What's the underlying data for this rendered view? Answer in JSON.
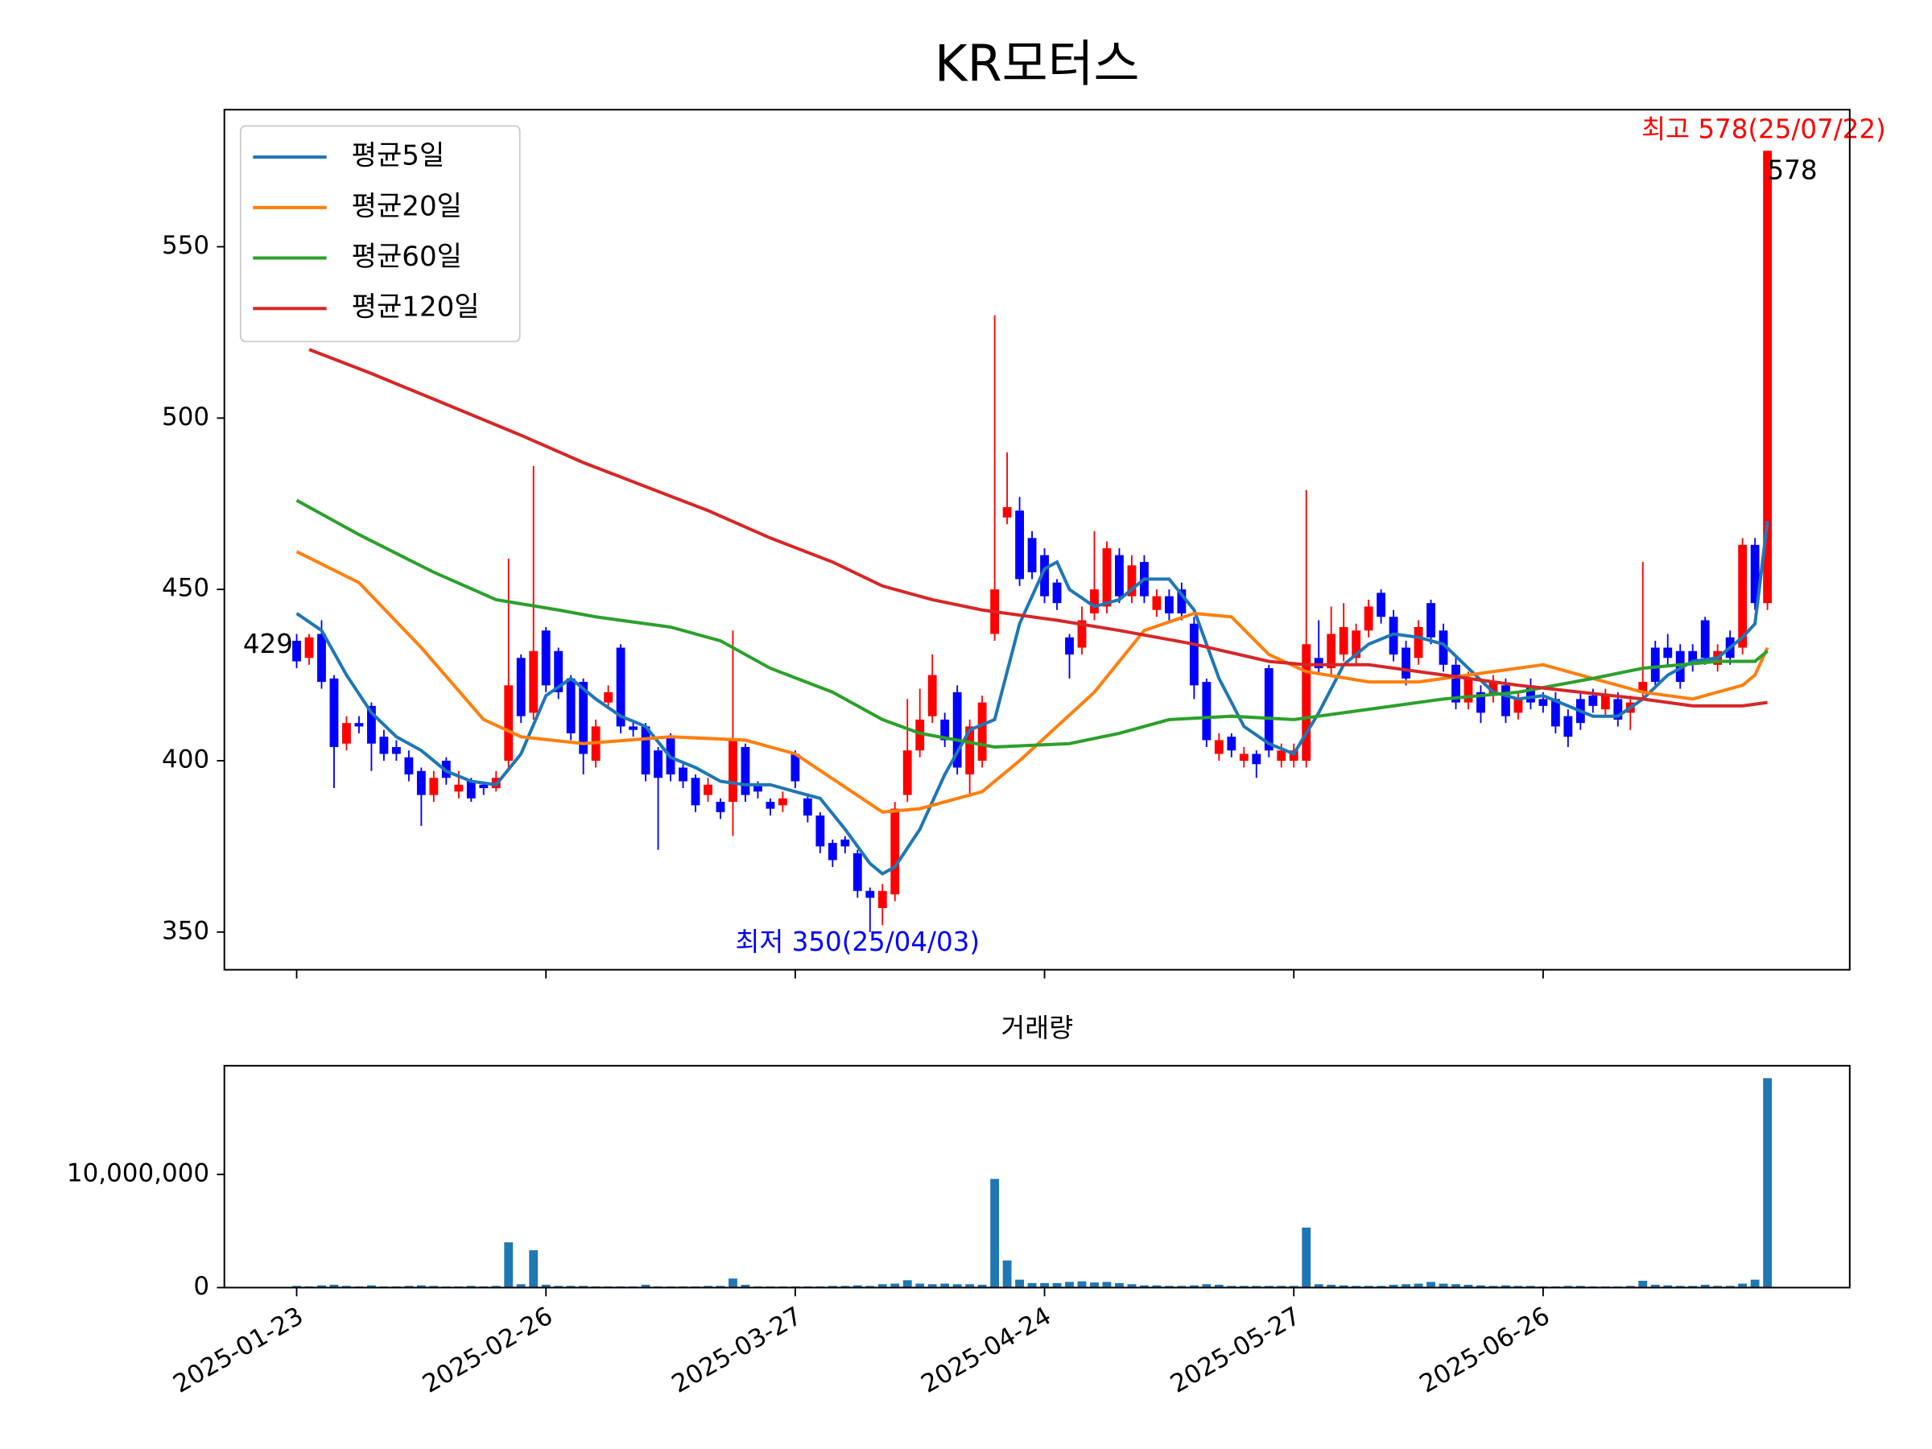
{
  "chart_data": [
    {
      "type": "candlestick",
      "title": "KR모터스",
      "x": [
        0,
        1,
        2,
        3,
        4,
        5,
        6,
        7,
        8,
        9,
        10,
        11,
        12,
        13,
        14,
        15,
        16,
        17,
        18,
        19,
        20,
        21,
        22,
        23,
        24,
        25,
        26,
        27,
        28,
        29,
        30,
        31,
        32,
        33,
        34,
        35,
        36,
        37,
        38,
        39,
        40,
        41,
        42,
        43,
        44,
        45,
        46,
        47,
        48,
        49,
        50,
        51,
        52,
        53,
        54,
        55,
        56,
        57,
        58,
        59,
        60,
        61,
        62,
        63,
        64,
        65,
        66,
        67,
        68,
        69,
        70,
        71,
        72,
        73,
        74,
        75,
        76,
        77,
        78,
        79,
        80,
        81,
        82,
        83,
        84,
        85,
        86,
        87,
        88,
        89,
        90,
        91,
        92,
        93,
        94,
        95,
        96,
        97,
        98,
        99,
        100,
        101,
        102,
        103,
        104,
        105,
        106,
        107,
        108,
        109,
        110,
        111,
        112,
        113,
        114,
        115,
        116,
        117,
        118
      ],
      "candles": [
        [
          435,
          437,
          427,
          429
        ],
        [
          430,
          437,
          428,
          436
        ],
        [
          437,
          441,
          421,
          423
        ],
        [
          424,
          425,
          392,
          404
        ],
        [
          405,
          413,
          403,
          411
        ],
        [
          411,
          413,
          408,
          410
        ],
        [
          416,
          417,
          397,
          405
        ],
        [
          407,
          409,
          400,
          402
        ],
        [
          404,
          406,
          400,
          402
        ],
        [
          401,
          403,
          394,
          396
        ],
        [
          397,
          398,
          381,
          390
        ],
        [
          390,
          397,
          388,
          395
        ],
        [
          400,
          401,
          393,
          395
        ],
        [
          391,
          397,
          389,
          393
        ],
        [
          394,
          395,
          388,
          389
        ],
        [
          393,
          394,
          390,
          392
        ],
        [
          392,
          397,
          391,
          395
        ],
        [
          400,
          459,
          398,
          422
        ],
        [
          430,
          431,
          411,
          413
        ],
        [
          414,
          486,
          412,
          432
        ],
        [
          438,
          439,
          420,
          422
        ],
        [
          432,
          433,
          418,
          420
        ],
        [
          424,
          425,
          406,
          408
        ],
        [
          423,
          424,
          396,
          402
        ],
        [
          400,
          412,
          398,
          410
        ],
        [
          417,
          422,
          415,
          420
        ],
        [
          433,
          434,
          408,
          410
        ],
        [
          410,
          412,
          407,
          409
        ],
        [
          410,
          411,
          394,
          396
        ],
        [
          403,
          404,
          374,
          395
        ],
        [
          407,
          408,
          394,
          396
        ],
        [
          398,
          399,
          392,
          394
        ],
        [
          395,
          396,
          385,
          387
        ],
        [
          390,
          395,
          388,
          393
        ],
        [
          388,
          389,
          383,
          385
        ],
        [
          388,
          438,
          378,
          406
        ],
        [
          404,
          405,
          388,
          390
        ],
        [
          393,
          394,
          389,
          391
        ],
        [
          388,
          389,
          384,
          386
        ],
        [
          387,
          391,
          385,
          389
        ],
        [
          402,
          403,
          392,
          394
        ],
        [
          389,
          390,
          382,
          384
        ],
        [
          384,
          385,
          373,
          375
        ],
        [
          376,
          377,
          369,
          371
        ],
        [
          377,
          378,
          373,
          375
        ],
        [
          373,
          374,
          360,
          362
        ],
        [
          362,
          363,
          350,
          360
        ],
        [
          357,
          364,
          352,
          362
        ],
        [
          361,
          388,
          359,
          386
        ],
        [
          390,
          418,
          388,
          403
        ],
        [
          403,
          421,
          401,
          412
        ],
        [
          413,
          431,
          411,
          425
        ],
        [
          412,
          414,
          404,
          406
        ],
        [
          420,
          422,
          396,
          398
        ],
        [
          396,
          412,
          390,
          410
        ],
        [
          400,
          419,
          398,
          417
        ],
        [
          437,
          530,
          435,
          450
        ],
        [
          471,
          490,
          469,
          474
        ],
        [
          473,
          477,
          451,
          453
        ],
        [
          465,
          467,
          453,
          455
        ],
        [
          460,
          462,
          446,
          448
        ],
        [
          452,
          453,
          444,
          446
        ],
        [
          436,
          437,
          424,
          431
        ],
        [
          433,
          445,
          431,
          441
        ],
        [
          443,
          467,
          441,
          450
        ],
        [
          445,
          464,
          443,
          462
        ],
        [
          460,
          462,
          446,
          448
        ],
        [
          448,
          460,
          446,
          457
        ],
        [
          458,
          460,
          446,
          448
        ],
        [
          444,
          450,
          442,
          448
        ],
        [
          448,
          450,
          441,
          443
        ],
        [
          450,
          452,
          441,
          443
        ],
        [
          440,
          442,
          418,
          422
        ],
        [
          423,
          424,
          404,
          406
        ],
        [
          402,
          408,
          400,
          406
        ],
        [
          407,
          408,
          401,
          403
        ],
        [
          400,
          404,
          398,
          402
        ],
        [
          402,
          403,
          395,
          399
        ],
        [
          427,
          428,
          401,
          403
        ],
        [
          400,
          405,
          398,
          403
        ],
        [
          400,
          405,
          398,
          403
        ],
        [
          400,
          479,
          398,
          434
        ],
        [
          430,
          441,
          425,
          427
        ],
        [
          427,
          445,
          425,
          437
        ],
        [
          431,
          446,
          429,
          439
        ],
        [
          430,
          440,
          428,
          438
        ],
        [
          438,
          447,
          436,
          445
        ],
        [
          449,
          450,
          440,
          442
        ],
        [
          442,
          444,
          429,
          431
        ],
        [
          433,
          435,
          422,
          424
        ],
        [
          430,
          441,
          428,
          439
        ],
        [
          446,
          447,
          434,
          436
        ],
        [
          438,
          440,
          426,
          428
        ],
        [
          428,
          430,
          415,
          417
        ],
        [
          417,
          426,
          415,
          424
        ],
        [
          420,
          422,
          411,
          414
        ],
        [
          419,
          425,
          417,
          423
        ],
        [
          422,
          424,
          411,
          413
        ],
        [
          414,
          420,
          412,
          418
        ],
        [
          422,
          424,
          415,
          417
        ],
        [
          418,
          420,
          414,
          416
        ],
        [
          418,
          420,
          408,
          410
        ],
        [
          413,
          415,
          404,
          407
        ],
        [
          418,
          420,
          409,
          411
        ],
        [
          419,
          421,
          414,
          416
        ],
        [
          415,
          421,
          413,
          419
        ],
        [
          418,
          420,
          410,
          412
        ],
        [
          414,
          419,
          409,
          417
        ],
        [
          420,
          458,
          418,
          423
        ],
        [
          433,
          435,
          421,
          423
        ],
        [
          433,
          437,
          428,
          430
        ],
        [
          432,
          434,
          421,
          423
        ],
        [
          432,
          434,
          426,
          428
        ],
        [
          441,
          442,
          428,
          430
        ],
        [
          428,
          434,
          426,
          432
        ],
        [
          436,
          438,
          428,
          430
        ],
        [
          433,
          465,
          431,
          463
        ],
        [
          463,
          465,
          444,
          446
        ],
        [
          446,
          578,
          444,
          578
        ]
      ],
      "up_color": "#ff0000",
      "down_color": "#0000ff",
      "series": [
        {
          "name": "평균5일",
          "color": "#1f77b4",
          "x": [
            0,
            2,
            4,
            6,
            8,
            10,
            12,
            14,
            16,
            18,
            20,
            22,
            24,
            26,
            28,
            30,
            32,
            34,
            36,
            38,
            40,
            42,
            44,
            46,
            47,
            48,
            50,
            52,
            54,
            56,
            58,
            60,
            61,
            62,
            64,
            66,
            68,
            70,
            72,
            74,
            76,
            78,
            80,
            82,
            84,
            86,
            88,
            90,
            92,
            94,
            96,
            98,
            100,
            102,
            104,
            106,
            108,
            110,
            112,
            114,
            116,
            117,
            118
          ],
          "values": [
            443,
            438,
            425,
            414,
            407,
            403,
            397,
            394,
            393,
            402,
            419,
            424,
            418,
            413,
            410,
            401,
            398,
            394,
            393,
            393,
            391,
            389,
            380,
            370,
            367,
            369,
            380,
            396,
            409,
            412,
            440,
            456,
            458,
            450,
            445,
            447,
            453,
            453,
            444,
            424,
            410,
            405,
            402,
            414,
            428,
            434,
            437,
            436,
            434,
            427,
            420,
            418,
            419,
            416,
            413,
            413,
            418,
            425,
            429,
            430,
            436,
            440,
            470
          ]
        },
        {
          "name": "평균20일",
          "color": "#ff7f0e",
          "x": [
            0,
            5,
            10,
            15,
            18,
            23,
            30,
            36,
            40,
            47,
            50,
            55,
            58,
            64,
            68,
            72,
            75,
            78,
            81,
            86,
            90,
            96,
            100,
            104,
            108,
            112,
            116,
            117,
            118
          ],
          "values": [
            461,
            452,
            433,
            412,
            407,
            405,
            407,
            406,
            402,
            385,
            386,
            391,
            400,
            420,
            438,
            443,
            442,
            431,
            426,
            423,
            423,
            426,
            428,
            424,
            420,
            418,
            422,
            425,
            433
          ]
        },
        {
          "name": "평균60일",
          "color": "#2ca02c",
          "x": [
            0,
            5,
            11,
            16,
            21,
            24,
            30,
            34,
            38,
            43,
            47,
            50,
            56,
            62,
            66,
            70,
            75,
            80,
            84,
            88,
            92,
            98,
            104,
            108,
            114,
            117,
            118
          ],
          "values": [
            476,
            466,
            455,
            447,
            444,
            442,
            439,
            435,
            427,
            420,
            412,
            408,
            404,
            405,
            408,
            412,
            413,
            412,
            414,
            416,
            418,
            420,
            424,
            427,
            429,
            429,
            432
          ]
        },
        {
          "name": "평균120일",
          "color": "#d62728",
          "x": [
            1,
            6,
            12,
            18,
            23,
            28,
            33,
            38,
            43,
            47,
            51,
            55,
            61,
            66,
            72,
            78,
            81,
            86,
            90,
            94,
            98,
            103,
            108,
            112,
            116,
            118
          ],
          "values": [
            520,
            513,
            504,
            495,
            487,
            480,
            473,
            465,
            458,
            451,
            447,
            444,
            441,
            438,
            434,
            429,
            428,
            428,
            426,
            424,
            422,
            420,
            418,
            416,
            416,
            417
          ]
        }
      ],
      "legend": "upper left",
      "ylim": [
        339,
        590
      ],
      "yticks": [
        350,
        400,
        450,
        500,
        550
      ],
      "xlim": [
        -5.8,
        124.6
      ],
      "annotations": {
        "high": "최고 578(25/07/22)",
        "low": "최저 350(25/04/03)",
        "first": "429",
        "last": "578"
      }
    },
    {
      "type": "bar",
      "title": "거래량",
      "color": "#1f77b4",
      "values": [
        150000,
        100000,
        200000,
        250000,
        150000,
        100000,
        200000,
        100000,
        100000,
        150000,
        200000,
        150000,
        100000,
        100000,
        150000,
        100000,
        150000,
        4000000,
        300000,
        3300000,
        250000,
        150000,
        150000,
        150000,
        100000,
        100000,
        100000,
        100000,
        250000,
        100000,
        100000,
        100000,
        100000,
        150000,
        150000,
        800000,
        250000,
        100000,
        100000,
        100000,
        100000,
        100000,
        100000,
        150000,
        150000,
        200000,
        150000,
        300000,
        350000,
        650000,
        350000,
        300000,
        350000,
        300000,
        300000,
        250000,
        9600000,
        2400000,
        700000,
        400000,
        400000,
        400000,
        500000,
        550000,
        450000,
        500000,
        400000,
        300000,
        200000,
        200000,
        150000,
        150000,
        200000,
        300000,
        250000,
        150000,
        150000,
        150000,
        150000,
        150000,
        150000,
        5300000,
        300000,
        250000,
        200000,
        150000,
        150000,
        150000,
        250000,
        300000,
        350000,
        500000,
        350000,
        300000,
        250000,
        200000,
        150000,
        200000,
        150000,
        150000,
        100000,
        100000,
        150000,
        150000,
        100000,
        100000,
        100000,
        150000,
        600000,
        250000,
        200000,
        150000,
        150000,
        250000,
        150000,
        150000,
        350000,
        700000,
        18500000
      ],
      "ylim": [
        0,
        19600000
      ],
      "yticks": [
        0,
        {
          "value": 10000000,
          "label": "10,000,000"
        }
      ],
      "xlim": [
        -5.8,
        124.6
      ],
      "xticks": [
        {
          "value": 0,
          "label": "2025-01-23"
        },
        {
          "value": 20,
          "label": "2025-02-26"
        },
        {
          "value": 40,
          "label": "2025-03-27"
        },
        {
          "value": 60,
          "label": "2025-04-24"
        },
        {
          "value": 80,
          "label": "2025-05-27"
        },
        {
          "value": 100,
          "label": "2025-06-26"
        }
      ]
    }
  ]
}
